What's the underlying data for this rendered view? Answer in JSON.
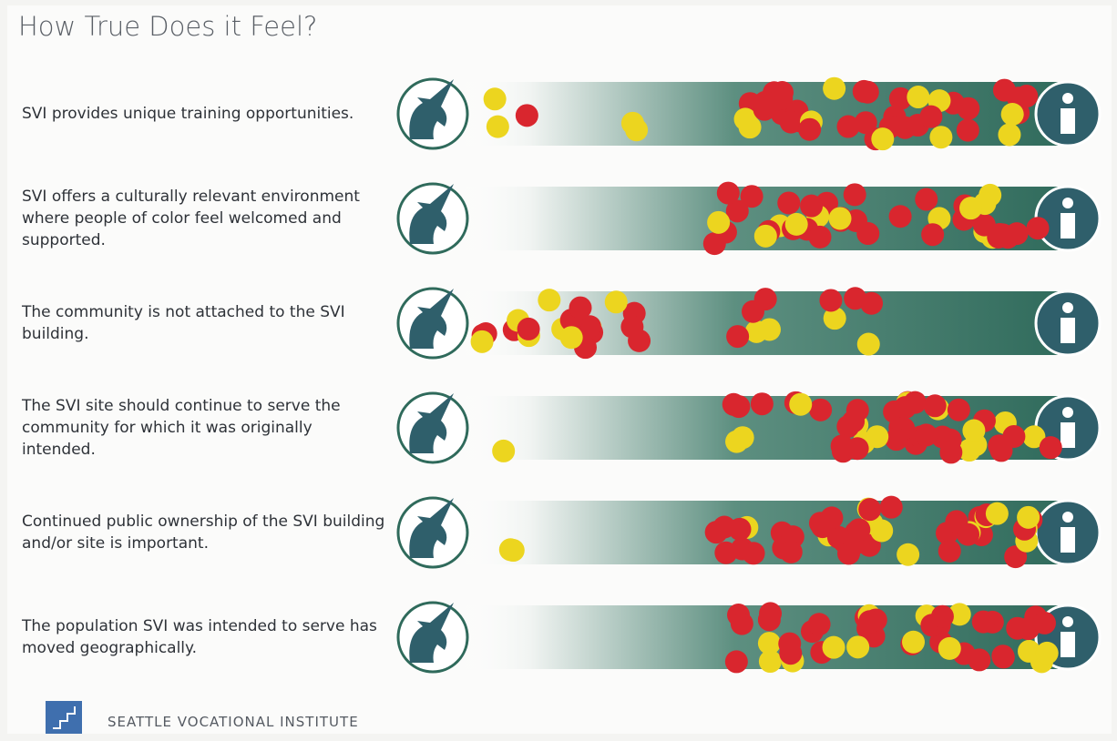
{
  "header": {
    "title": "How True Does it Feel?"
  },
  "statements": [
    "SVI provides unique training opportunities.",
    "SVI offers a culturally relevant environment where people of color feel welcomed and supported.",
    "The community is not attached to the SVI building.",
    "The SVI site should continue to serve the community for which it was originally intended.",
    "Continued public ownership of the SVI building and/or site is important.",
    "The population SVI was intended to serve has moved geographically."
  ],
  "footer": {
    "organization": "SEATTLE VOCATIONAL INSTITUTE"
  }
}
